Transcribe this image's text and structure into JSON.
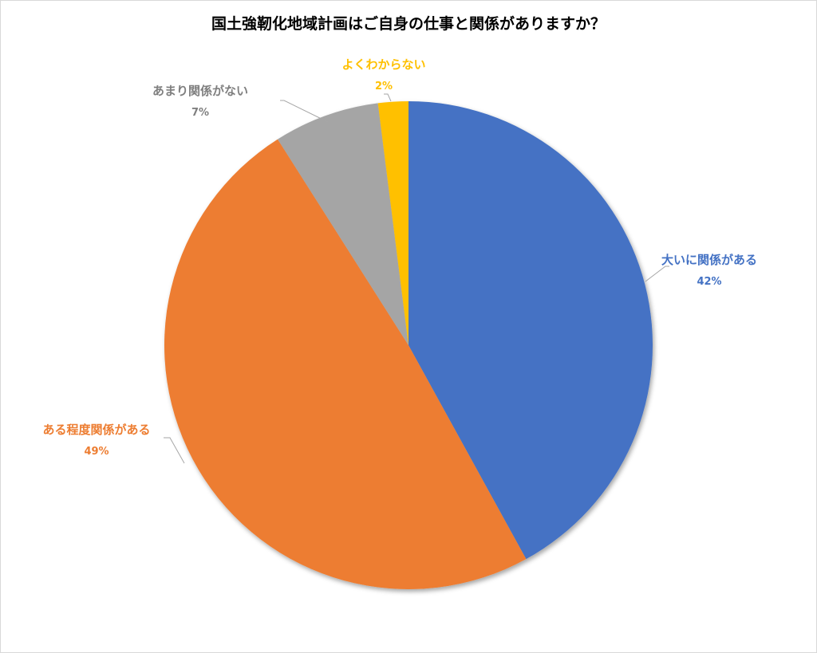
{
  "chart_data": {
    "type": "pie",
    "title": "国土強靭化地域計画はご自身の仕事と関係がありますか？",
    "slices": [
      {
        "label": "大いに関係がある",
        "value": 42,
        "value_label": "42%",
        "color": "#4472C4"
      },
      {
        "label": "ある程度関係がある",
        "value": 49,
        "value_label": "49%",
        "color": "#ED7D31"
      },
      {
        "label": "あまり関係がない",
        "value": 7,
        "value_label": "7%",
        "color": "#A5A5A5"
      },
      {
        "label": "よくわからない",
        "value": 2,
        "value_label": "2%",
        "color": "#FFC000"
      }
    ],
    "start_angle_deg": 0,
    "direction": "clockwise",
    "legend": "none",
    "data_labels": "outside with leader lines"
  }
}
